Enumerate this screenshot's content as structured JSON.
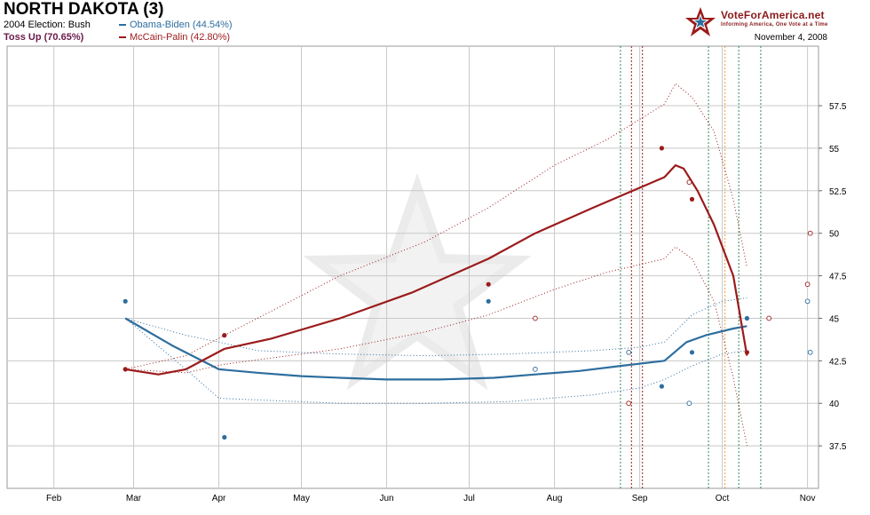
{
  "header": {
    "title": "NORTH DAKOTA (3)",
    "election_line": "2004 Election: Bush",
    "status_line": "Toss Up (70.65%)",
    "date": "November 4, 2008"
  },
  "brand": {
    "name": "VoteForAmerica.net",
    "tagline": "Informing America, One Vote at a Time"
  },
  "colors": {
    "obama": "#2e6e9e",
    "mccain": "#9b1b1b",
    "grid": "#c8c8c8"
  },
  "chart_data": {
    "type": "line",
    "title": "NORTH DAKOTA (3)",
    "xlabel": "",
    "ylabel": "",
    "x_ticks": [
      "Feb",
      "Mar",
      "Apr",
      "May",
      "Jun",
      "Jul",
      "Aug",
      "Sep",
      "Oct",
      "Nov"
    ],
    "y_ticks": [
      "37.5",
      "40",
      "42.5",
      "45",
      "47.5",
      "50",
      "52.5",
      "55",
      "57.5"
    ],
    "xlim": [
      "2008-01-15",
      "2008-11-05"
    ],
    "ylim": [
      35,
      61
    ],
    "grid": true,
    "legend_position": "top-left",
    "series": [
      {
        "name": "Obama-Biden (44.54%)",
        "color": "#2e6e9e",
        "trend": [
          [
            "2008-02-27",
            45.0
          ],
          [
            "2008-03-15",
            43.4
          ],
          [
            "2008-04-01",
            42.0
          ],
          [
            "2008-04-15",
            41.8
          ],
          [
            "2008-05-01",
            41.6
          ],
          [
            "2008-05-15",
            41.5
          ],
          [
            "2008-06-01",
            41.4
          ],
          [
            "2008-06-20",
            41.4
          ],
          [
            "2008-07-10",
            41.5
          ],
          [
            "2008-07-25",
            41.7
          ],
          [
            "2008-08-10",
            41.9
          ],
          [
            "2008-08-25",
            42.2
          ],
          [
            "2008-09-10",
            42.5
          ],
          [
            "2008-09-18",
            43.6
          ],
          [
            "2008-09-25",
            44.0
          ],
          [
            "2008-10-05",
            44.4
          ],
          [
            "2008-10-10",
            44.54
          ]
        ],
        "upper": [
          [
            "2008-02-27",
            45.0
          ],
          [
            "2008-03-20",
            44.0
          ],
          [
            "2008-04-01",
            43.6
          ],
          [
            "2008-04-15",
            43.1
          ],
          [
            "2008-05-15",
            42.9
          ],
          [
            "2008-06-15",
            42.8
          ],
          [
            "2008-07-15",
            42.9
          ],
          [
            "2008-08-15",
            43.1
          ],
          [
            "2008-09-01",
            43.3
          ],
          [
            "2008-09-10",
            43.6
          ],
          [
            "2008-09-20",
            45.2
          ],
          [
            "2008-10-01",
            46.0
          ],
          [
            "2008-10-10",
            46.2
          ]
        ],
        "lower": [
          [
            "2008-02-27",
            45.0
          ],
          [
            "2008-03-20",
            42.0
          ],
          [
            "2008-04-01",
            40.3
          ],
          [
            "2008-04-15",
            40.2
          ],
          [
            "2008-05-15",
            40.0
          ],
          [
            "2008-06-15",
            40.0
          ],
          [
            "2008-07-15",
            40.1
          ],
          [
            "2008-08-15",
            40.5
          ],
          [
            "2008-09-01",
            40.9
          ],
          [
            "2008-09-10",
            41.4
          ],
          [
            "2008-09-20",
            42.2
          ],
          [
            "2008-10-01",
            42.9
          ],
          [
            "2008-10-10",
            43.1
          ]
        ],
        "polls": [
          [
            "2008-02-27",
            46.0,
            true
          ],
          [
            "2008-04-03",
            38.0,
            true
          ],
          [
            "2008-07-08",
            46.0,
            true
          ],
          [
            "2008-07-25",
            42.0,
            false
          ],
          [
            "2008-08-28",
            43.0,
            false
          ],
          [
            "2008-09-09",
            41.0,
            true
          ],
          [
            "2008-09-19",
            40.0,
            false
          ],
          [
            "2008-09-20",
            43.0,
            true
          ],
          [
            "2008-10-10",
            45.0,
            true
          ],
          [
            "2008-11-01",
            46.0,
            false
          ],
          [
            "2008-11-02",
            43.0,
            false
          ]
        ]
      },
      {
        "name": "McCain-Palin (42.80%)",
        "color": "#9b1b1b",
        "trend": [
          [
            "2008-02-27",
            42.0
          ],
          [
            "2008-03-10",
            41.7
          ],
          [
            "2008-03-20",
            42.0
          ],
          [
            "2008-04-03",
            43.2
          ],
          [
            "2008-04-20",
            43.8
          ],
          [
            "2008-05-15",
            45.0
          ],
          [
            "2008-06-10",
            46.5
          ],
          [
            "2008-07-08",
            48.5
          ],
          [
            "2008-07-25",
            50.0
          ],
          [
            "2008-08-15",
            51.5
          ],
          [
            "2008-09-10",
            53.3
          ],
          [
            "2008-09-14",
            54.0
          ],
          [
            "2008-09-17",
            53.8
          ],
          [
            "2008-09-22",
            52.5
          ],
          [
            "2008-09-28",
            50.5
          ],
          [
            "2008-10-05",
            47.5
          ],
          [
            "2008-10-10",
            42.8
          ]
        ],
        "upper": [
          [
            "2008-02-27",
            42.0
          ],
          [
            "2008-03-20",
            42.8
          ],
          [
            "2008-04-03",
            44.0
          ],
          [
            "2008-05-15",
            47.5
          ],
          [
            "2008-06-15",
            49.5
          ],
          [
            "2008-07-08",
            51.5
          ],
          [
            "2008-08-01",
            54.0
          ],
          [
            "2008-08-20",
            55.5
          ],
          [
            "2008-09-10",
            57.6
          ],
          [
            "2008-09-14",
            58.8
          ],
          [
            "2008-09-20",
            58.0
          ],
          [
            "2008-09-28",
            56.0
          ],
          [
            "2008-10-05",
            52.0
          ],
          [
            "2008-10-10",
            48.0
          ]
        ],
        "lower": [
          [
            "2008-02-27",
            42.0
          ],
          [
            "2008-03-20",
            41.8
          ],
          [
            "2008-04-03",
            42.3
          ],
          [
            "2008-05-15",
            43.2
          ],
          [
            "2008-06-15",
            44.2
          ],
          [
            "2008-07-08",
            45.2
          ],
          [
            "2008-08-01",
            46.7
          ],
          [
            "2008-08-20",
            47.7
          ],
          [
            "2008-09-10",
            48.5
          ],
          [
            "2008-09-14",
            49.2
          ],
          [
            "2008-09-20",
            48.5
          ],
          [
            "2008-09-28",
            46.0
          ],
          [
            "2008-10-05",
            41.5
          ],
          [
            "2008-10-10",
            37.5
          ]
        ],
        "polls": [
          [
            "2008-02-27",
            42.0,
            true
          ],
          [
            "2008-04-03",
            44.0,
            true
          ],
          [
            "2008-07-08",
            47.0,
            true
          ],
          [
            "2008-07-25",
            45.0,
            false
          ],
          [
            "2008-08-28",
            40.0,
            false
          ],
          [
            "2008-09-09",
            55.0,
            true
          ],
          [
            "2008-09-19",
            53.0,
            false
          ],
          [
            "2008-09-20",
            52.0,
            true
          ],
          [
            "2008-10-10",
            43.0,
            true
          ],
          [
            "2008-10-18",
            45.0,
            false
          ],
          [
            "2008-11-01",
            47.0,
            false
          ],
          [
            "2008-11-02",
            50.0,
            false
          ]
        ]
      }
    ],
    "event_lines": [
      [
        "2008-08-25",
        "#2e8a5a"
      ],
      [
        "2008-08-29",
        "#9b1b1b"
      ],
      [
        "2008-09-02",
        "#9b1b1b"
      ],
      [
        "2008-09-26",
        "#2e8a5a"
      ],
      [
        "2008-10-02",
        "#e8a040"
      ],
      [
        "2008-10-07",
        "#2e8a5a"
      ],
      [
        "2008-10-15",
        "#2e8a5a"
      ]
    ]
  }
}
